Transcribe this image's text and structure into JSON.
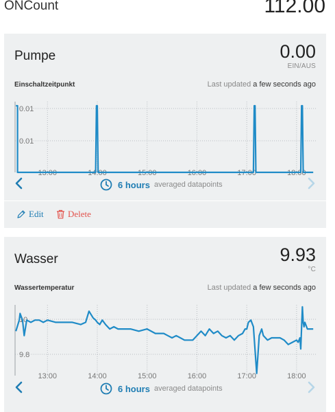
{
  "top": {
    "label": "ONCount",
    "value": "112.00"
  },
  "cards": [
    {
      "title": "Pumpe",
      "value": "0.00",
      "unit": "EIN/AUS",
      "subtitle": "Einschaltzeitpunkt",
      "updated_prefix": "Last updated",
      "updated_rel": "a few seconds ago",
      "range_label": "6 hours",
      "range_suffix": "averaged datapoints",
      "edit_label": "Edit",
      "delete_label": "Delete",
      "chart_data": {
        "type": "line",
        "x_ticks": [
          "13:00",
          "14:00",
          "15:00",
          "16:00",
          "17:00",
          "18:00"
        ],
        "y_ticks": [
          "0.01",
          "0.01"
        ],
        "ylim": [
          0,
          0.01
        ],
        "color": "#1f8bc7",
        "series": [
          {
            "x": [
              "12:22",
              "12:24",
              "12:24",
              "12:25",
              "12:26",
              "13:58",
              "13:59",
              "14:00",
              "14:01",
              "17:08",
              "17:09",
              "17:10",
              "17:11",
              "18:05",
              "18:06",
              "18:07",
              "18:08",
              "18:20"
            ],
            "values": [
              0.01,
              0.01,
              0,
              0,
              0,
              0,
              0.01,
              0.01,
              0,
              0,
              0.01,
              0.01,
              0,
              0,
              0.01,
              0.01,
              0,
              0
            ]
          }
        ]
      }
    },
    {
      "title": "Wasser",
      "value": "9.93",
      "unit": "°C",
      "subtitle": "Wassertemperatur",
      "updated_prefix": "Last updated",
      "updated_rel": "a few seconds ago",
      "range_label": "6 hours",
      "range_suffix": "averaged datapoints",
      "chart_data": {
        "type": "line",
        "x_ticks": [
          "13:00",
          "14:00",
          "15:00",
          "16:00",
          "17:00",
          "18:00"
        ],
        "y_ticks": [
          "10",
          "9.8"
        ],
        "ylim": [
          9.72,
          10.02
        ],
        "color": "#1f8bc7",
        "series": [
          {
            "x": [
              "12:22",
              "12:26",
              "12:27",
              "12:30",
              "12:32",
              "12:35",
              "12:40",
              "12:45",
              "12:50",
              "12:55",
              "13:00",
              "13:10",
              "13:20",
              "13:30",
              "13:40",
              "13:46",
              "13:50",
              "13:55",
              "13:58",
              "14:00",
              "14:03",
              "14:06",
              "14:10",
              "14:15",
              "14:20",
              "14:25",
              "14:30",
              "14:40",
              "14:50",
              "15:00",
              "15:10",
              "15:20",
              "15:25",
              "15:30",
              "15:35",
              "15:40",
              "15:45",
              "15:50",
              "15:55",
              "16:00",
              "16:05",
              "16:10",
              "16:15",
              "16:20",
              "16:25",
              "16:30",
              "16:35",
              "16:40",
              "16:45",
              "16:50",
              "16:55",
              "16:58",
              "17:00",
              "17:02",
              "17:05",
              "17:08",
              "17:12",
              "17:15",
              "17:18",
              "17:20",
              "17:25",
              "17:30",
              "17:35",
              "17:40",
              "17:45",
              "17:50",
              "17:55",
              "18:00",
              "18:02",
              "18:03",
              "18:04",
              "18:05",
              "18:07",
              "18:08",
              "18:09",
              "18:10",
              "18:13",
              "18:17",
              "18:20"
            ],
            "values": [
              9.92,
              9.97,
              10.0,
              9.97,
              9.9,
              9.97,
              9.96,
              9.97,
              9.97,
              9.96,
              9.97,
              9.96,
              9.96,
              9.96,
              9.95,
              9.96,
              10.01,
              9.98,
              9.97,
              9.96,
              9.95,
              9.97,
              9.95,
              9.93,
              9.94,
              9.93,
              9.93,
              9.93,
              9.92,
              9.93,
              9.91,
              9.91,
              9.9,
              9.89,
              9.9,
              9.89,
              9.88,
              9.88,
              9.88,
              9.9,
              9.92,
              9.9,
              9.93,
              9.91,
              9.92,
              9.9,
              9.89,
              9.9,
              9.88,
              9.9,
              9.91,
              9.93,
              9.93,
              9.96,
              9.97,
              9.94,
              9.73,
              9.9,
              9.93,
              9.9,
              9.88,
              9.89,
              9.89,
              9.89,
              9.88,
              9.86,
              9.87,
              9.88,
              9.87,
              9.88,
              9.89,
              9.84,
              10.03,
              9.96,
              9.94,
              9.96,
              9.93,
              9.93,
              9.93
            ]
          }
        ]
      }
    }
  ]
}
